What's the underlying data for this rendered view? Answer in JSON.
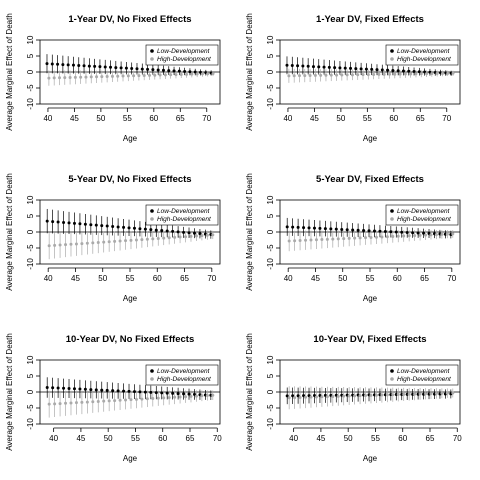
{
  "chart_data": [
    {
      "type": "scatter",
      "title": "1-Year DV, No Fixed Effects",
      "xlabel": "Age",
      "ylabel": "Average Marginal Effect of Death",
      "xlim": [
        38.5,
        72.5
      ],
      "ylim": [
        -10,
        10
      ],
      "xticks": [
        40,
        45,
        50,
        55,
        60,
        65,
        70
      ],
      "yticks": [
        10,
        5,
        0,
        -5,
        -10
      ],
      "legend_position": "top-right",
      "legend": [
        "Low-Development",
        "High-Development"
      ],
      "x_start": 40,
      "x_end": 71,
      "series": [
        {
          "name": "Low-Development",
          "color": "#000000",
          "start": 2.6,
          "end": -0.3,
          "halfwidth_start": 3.0,
          "halfwidth_end": 0.8
        },
        {
          "name": "High-Development",
          "color": "#aaaaaa",
          "start": -1.9,
          "end": -0.5,
          "halfwidth_start": 2.4,
          "halfwidth_end": 0.8
        }
      ]
    },
    {
      "type": "scatter",
      "title": "1-Year DV, Fixed Effects",
      "xlabel": "Age",
      "ylabel": "Average Marginal Effect of Death",
      "xlim": [
        38.5,
        72.5
      ],
      "ylim": [
        -10,
        10
      ],
      "xticks": [
        40,
        45,
        50,
        55,
        60,
        65,
        70
      ],
      "yticks": [
        10,
        5,
        0,
        -5,
        -10
      ],
      "legend_position": "top-right",
      "legend": [
        "Low-Development",
        "High-Development"
      ],
      "x_start": 40,
      "x_end": 71,
      "series": [
        {
          "name": "Low-Development",
          "color": "#000000",
          "start": 2.1,
          "end": -0.4,
          "halfwidth_start": 2.8,
          "halfwidth_end": 0.8
        },
        {
          "name": "High-Development",
          "color": "#aaaaaa",
          "start": -1.2,
          "end": -0.4,
          "halfwidth_start": 2.2,
          "halfwidth_end": 0.8
        }
      ]
    },
    {
      "type": "scatter",
      "title": "5-Year DV, No Fixed Effects",
      "xlabel": "Age",
      "ylabel": "Average Marginal Effect of Death",
      "xlim": [
        38.5,
        71.5
      ],
      "ylim": [
        -10,
        10
      ],
      "xticks": [
        40,
        45,
        50,
        55,
        60,
        65,
        70
      ],
      "yticks": [
        10,
        5,
        0,
        -5,
        -10
      ],
      "legend_position": "top-right",
      "legend": [
        "Low-Development",
        "High-Development"
      ],
      "x_start": 40,
      "x_end": 70,
      "series": [
        {
          "name": "Low-Development",
          "color": "#000000",
          "start": 3.4,
          "end": -0.8,
          "halfwidth_start": 3.8,
          "halfwidth_end": 1.3
        },
        {
          "name": "High-Development",
          "color": "#aaaaaa",
          "start": -4.3,
          "end": -0.9,
          "halfwidth_start": 4.2,
          "halfwidth_end": 1.3
        }
      ]
    },
    {
      "type": "scatter",
      "title": "5-Year DV, Fixed Effects",
      "xlabel": "Age",
      "ylabel": "Average Marginal Effect of Death",
      "xlim": [
        38.5,
        71.5
      ],
      "ylim": [
        -10,
        10
      ],
      "xticks": [
        40,
        45,
        50,
        55,
        60,
        65,
        70
      ],
      "yticks": [
        10,
        5,
        0,
        -5,
        -10
      ],
      "legend_position": "top-right",
      "legend": [
        "Low-Development",
        "High-Development"
      ],
      "x_start": 40,
      "x_end": 70,
      "series": [
        {
          "name": "Low-Development",
          "color": "#000000",
          "start": 1.6,
          "end": -0.8,
          "halfwidth_start": 2.8,
          "halfwidth_end": 1.2
        },
        {
          "name": "High-Development",
          "color": "#aaaaaa",
          "start": -2.8,
          "end": -0.6,
          "halfwidth_start": 3.2,
          "halfwidth_end": 1.2
        }
      ]
    },
    {
      "type": "scatter",
      "title": "10-Year DV, No Fixed Effects",
      "xlabel": "Age",
      "ylabel": "Average Marginal Effect of Death",
      "xlim": [
        37.5,
        70.5
      ],
      "ylim": [
        -10,
        10
      ],
      "xticks": [
        40,
        45,
        50,
        55,
        60,
        65,
        70
      ],
      "yticks": [
        10,
        5,
        0,
        -5,
        -10
      ],
      "legend_position": "top-right",
      "legend": [
        "Low-Development",
        "High-Development"
      ],
      "x_start": 39,
      "x_end": 69,
      "series": [
        {
          "name": "Low-Development",
          "color": "#000000",
          "start": 1.4,
          "end": -1.0,
          "halfwidth_start": 3.2,
          "halfwidth_end": 1.5
        },
        {
          "name": "High-Development",
          "color": "#aaaaaa",
          "start": -3.8,
          "end": -1.0,
          "halfwidth_start": 4.2,
          "halfwidth_end": 1.5
        }
      ]
    },
    {
      "type": "scatter",
      "title": "10-Year DV, Fixed Effects",
      "xlabel": "Age",
      "ylabel": "Average Marginal Effect of Death",
      "xlim": [
        37.5,
        70.5
      ],
      "ylim": [
        -10,
        10
      ],
      "xticks": [
        40,
        45,
        50,
        55,
        60,
        65,
        70
      ],
      "yticks": [
        10,
        5,
        0,
        -5,
        -10
      ],
      "legend_position": "top-right",
      "legend": [
        "Low-Development",
        "High-Development"
      ],
      "x_start": 39,
      "x_end": 69,
      "series": [
        {
          "name": "Low-Development",
          "color": "#000000",
          "start": -1.2,
          "end": -0.6,
          "halfwidth_start": 2.6,
          "halfwidth_end": 1.4
        },
        {
          "name": "High-Development",
          "color": "#aaaaaa",
          "start": -1.8,
          "end": -0.3,
          "halfwidth_start": 3.6,
          "halfwidth_end": 1.4
        }
      ]
    }
  ]
}
